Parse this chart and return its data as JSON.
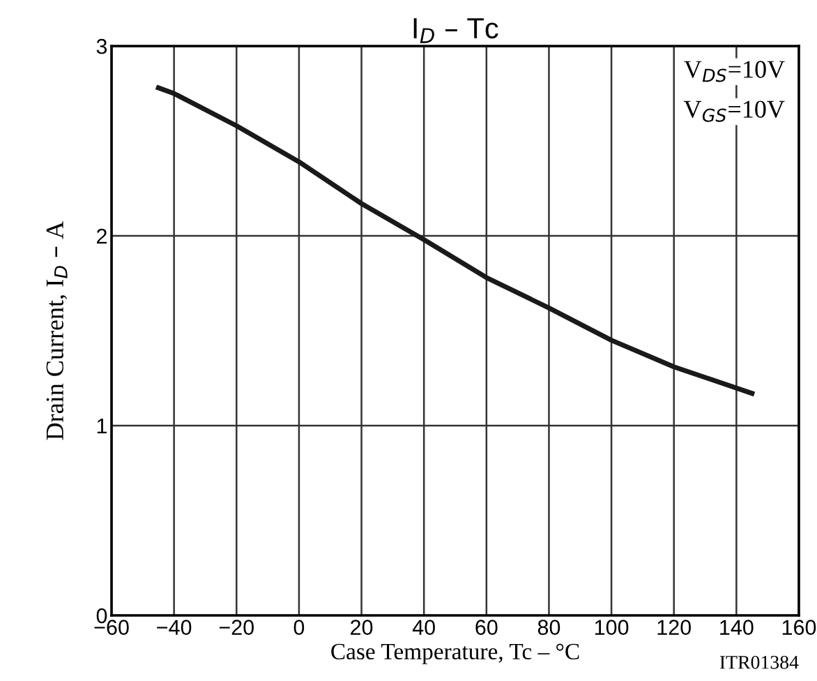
{
  "chart_data": {
    "type": "line",
    "title": "I$_{D}$ – Tc",
    "xlabel": "Case Temperature, Tc – °C",
    "ylabel": "Drain Current, I$_{D}$ – A",
    "annotations": [
      "V$_{DS}$=10V",
      "V$_{GS}$=10V",
      "ITR01384"
    ],
    "x": [
      -45,
      -40,
      -20,
      0,
      20,
      40,
      60,
      80,
      100,
      120,
      145
    ],
    "series": [
      {
        "color": "#1a1a1a",
        "values": [
          2.78,
          2.75,
          2.58,
          2.39,
          2.17,
          1.98,
          1.78,
          1.62,
          1.45,
          1.31,
          1.17
        ]
      }
    ],
    "xlim": [
      -60,
      160
    ],
    "xticks": [
      {
        "value": -60,
        "label": "−60"
      },
      {
        "value": -40,
        "label": "−40"
      },
      {
        "value": -20,
        "label": "−20"
      },
      0,
      20,
      40,
      60,
      80,
      100,
      120,
      140,
      160
    ],
    "ylim": [
      0,
      3
    ],
    "yticks": [
      0,
      1,
      2,
      3
    ],
    "grid": true,
    "line_style": "solid",
    "marker": "none"
  }
}
